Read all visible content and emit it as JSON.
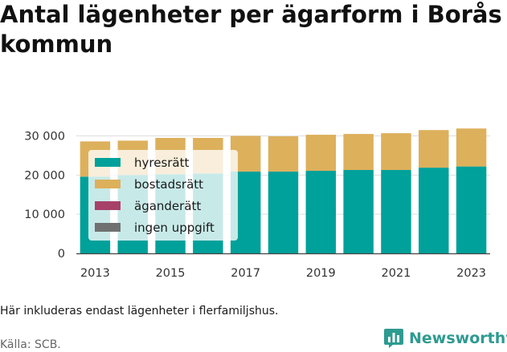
{
  "title": "Antal lägenheter per ägarform i Borås kommun",
  "note": "Här inkluderas endast lägenheter i flerfamiljshus.",
  "source": "Källa: SCB.",
  "logo": {
    "text": "Newsworthy",
    "icon": "newsworthy-bar-chart-icon",
    "color": "#2e9b91"
  },
  "colors": {
    "hyresratt": "#00a19a",
    "bostadsratt": "#ddb05c",
    "aganderatt": "#a8416a",
    "ingen_uppgift": "#707070"
  },
  "chart_data": {
    "type": "bar",
    "stacked": true,
    "categories": [
      "2013",
      "2014",
      "2015",
      "2016",
      "2017",
      "2018",
      "2019",
      "2020",
      "2021",
      "2022",
      "2023"
    ],
    "x_tick_labels": [
      "2013",
      "2015",
      "2017",
      "2019",
      "2021",
      "2023"
    ],
    "y_ticks": [
      0,
      10000,
      20000,
      30000
    ],
    "y_tick_labels": [
      "0",
      "10 000",
      "20 000",
      "30 000"
    ],
    "ylim": [
      0,
      34000
    ],
    "grid": "horizontal",
    "legend_position": "top-left",
    "series": [
      {
        "name": "hyresrätt",
        "key": "hyresratt",
        "values": [
          19600,
          20000,
          20200,
          20400,
          20900,
          20900,
          21100,
          21300,
          21300,
          21900,
          22200
        ]
      },
      {
        "name": "bostadsrätt",
        "key": "bostadsratt",
        "values": [
          9000,
          8800,
          9300,
          9100,
          9100,
          9000,
          9200,
          9200,
          9400,
          9600,
          9700
        ]
      },
      {
        "name": "äganderätt",
        "key": "aganderatt",
        "values": [
          0,
          0,
          0,
          0,
          0,
          0,
          0,
          0,
          0,
          0,
          0
        ]
      },
      {
        "name": "ingen uppgift",
        "key": "ingen_uppgift",
        "values": [
          0,
          0,
          0,
          0,
          0,
          0,
          0,
          0,
          0,
          0,
          0
        ]
      }
    ]
  }
}
